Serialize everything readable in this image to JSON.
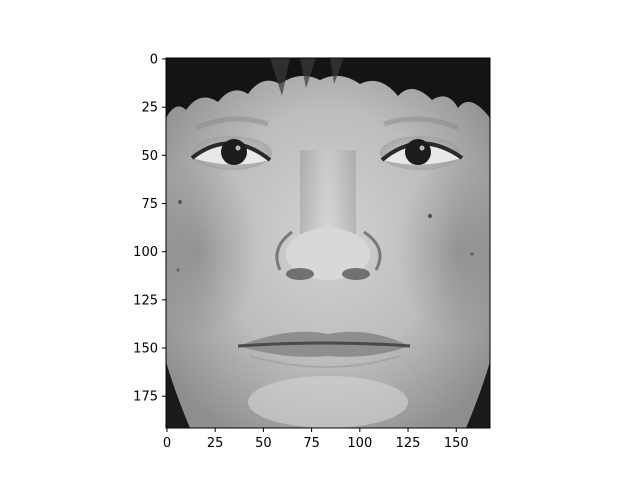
{
  "chart_data": {
    "type": "heatmap",
    "title": "",
    "xlabel": "",
    "ylabel": "",
    "colormap": "gray",
    "image_description": "grayscale aligned face image",
    "image_shape": [
      192,
      168
    ],
    "xlim": [
      -0.5,
      167.5
    ],
    "ylim": [
      191.5,
      -0.5
    ],
    "x_ticks": [
      0,
      25,
      50,
      75,
      100,
      125,
      150
    ],
    "y_ticks": [
      0,
      25,
      50,
      75,
      100,
      125,
      150,
      175
    ]
  },
  "colors": {
    "background": "#ffffff",
    "axis": "#000000",
    "skin": "#bdbdbd",
    "hair": "#141414"
  }
}
